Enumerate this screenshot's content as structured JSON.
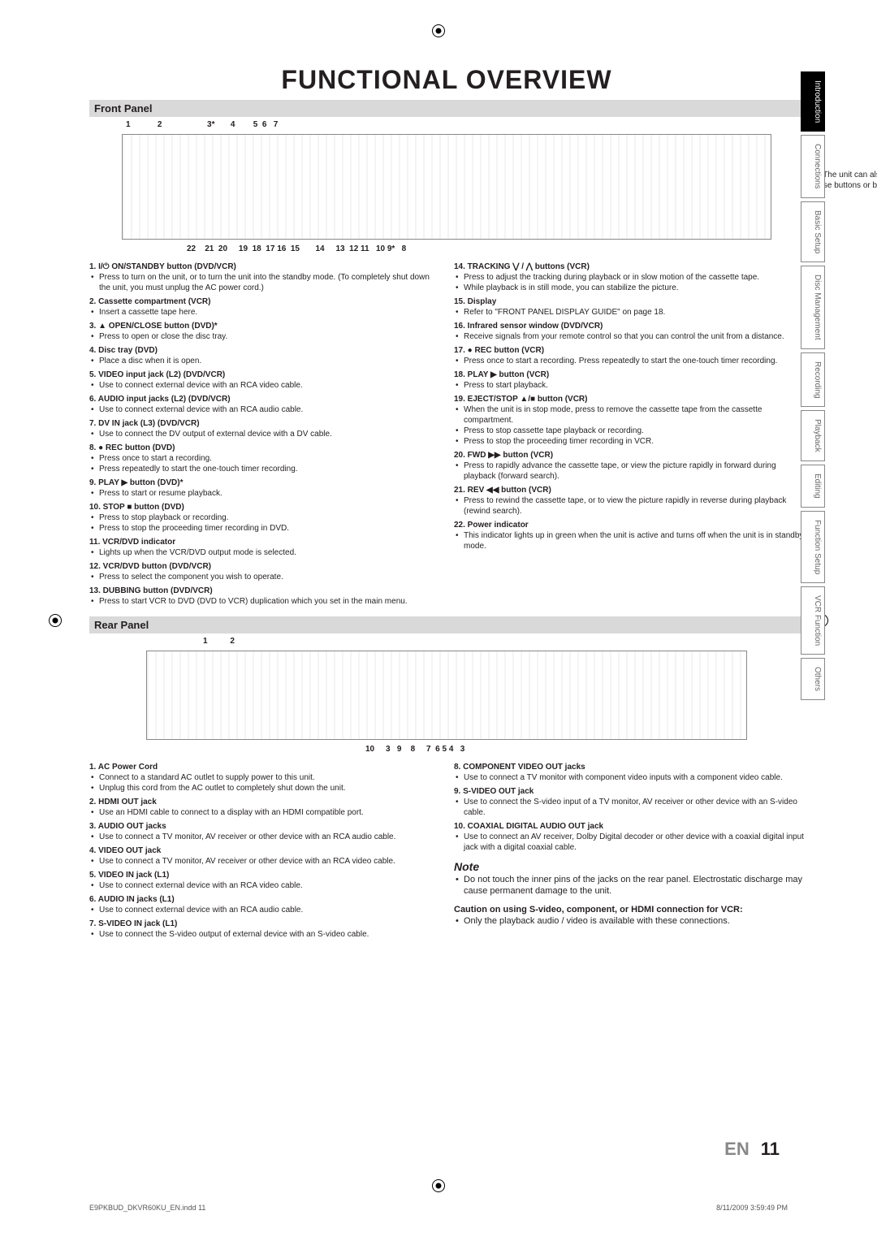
{
  "title": "FUNCTIONAL OVERVIEW",
  "sections": {
    "front": "Front Panel",
    "rear": "Rear Panel"
  },
  "front_top_nums": "1            2                    3*       4        5  6   7",
  "front_bottom_nums": "22    21  20     19  18  17 16  15       14     13  12 11   10 9*   8",
  "side_note": "(*) The unit can also be turned on by pressing these buttons or by inserting a cassette tape.",
  "front_left": [
    {
      "h": "1. I/⏻ ON/STANDBY button (DVD/VCR)",
      "b": [
        "Press to turn on the unit, or to turn the unit into the standby mode. (To completely shut down the unit, you must unplug the AC power cord.)"
      ]
    },
    {
      "h": "2. Cassette compartment (VCR)",
      "b": [
        "Insert a cassette tape here."
      ]
    },
    {
      "h": "3. ▲ OPEN/CLOSE button (DVD)*",
      "b": [
        "Press to open or close the disc tray."
      ]
    },
    {
      "h": "4. Disc tray (DVD)",
      "b": [
        "Place a disc when it is open."
      ]
    },
    {
      "h": "5. VIDEO input jack (L2) (DVD/VCR)",
      "b": [
        "Use to connect external device with an RCA video cable."
      ]
    },
    {
      "h": "6. AUDIO input jacks (L2) (DVD/VCR)",
      "b": [
        "Use to connect external device with an RCA audio cable."
      ]
    },
    {
      "h": "7. DV IN jack (L3) (DVD/VCR)",
      "b": [
        "Use to connect the DV output of external device with a DV cable."
      ]
    },
    {
      "h": "8. ● REC button (DVD)",
      "b": [
        "Press once to start a recording.",
        "Press repeatedly to start the one-touch timer recording."
      ]
    },
    {
      "h": "9. PLAY ▶ button (DVD)*",
      "b": [
        "Press to start or resume playback."
      ]
    },
    {
      "h": "10. STOP ■ button (DVD)",
      "b": [
        "Press to stop playback or recording.",
        "Press to stop the proceeding timer recording in DVD."
      ]
    },
    {
      "h": "11. VCR/DVD indicator",
      "b": [
        "Lights up when the VCR/DVD output mode is selected."
      ]
    },
    {
      "h": "12. VCR/DVD button (DVD/VCR)",
      "b": [
        "Press to select the component you wish to operate."
      ]
    },
    {
      "h": "13. DUBBING button (DVD/VCR)",
      "b": [
        "Press to start VCR to DVD (DVD to VCR) duplication which you set in the main menu."
      ]
    }
  ],
  "front_right": [
    {
      "h": "14. TRACKING ⋁ / ⋀ buttons (VCR)",
      "b": [
        "Press to adjust the tracking during playback or in slow motion of the cassette tape.",
        "While playback is in still mode, you can stabilize the picture."
      ]
    },
    {
      "h": "15. Display",
      "b": [
        "Refer to \"FRONT PANEL DISPLAY GUIDE\" on page 18."
      ]
    },
    {
      "h": "16. Infrared sensor window (DVD/VCR)",
      "b": [
        "Receive signals from your remote control so that you can control the unit from a distance."
      ]
    },
    {
      "h": "17. ● REC button (VCR)",
      "b": [
        "Press once to start a recording. Press repeatedly to start the one-touch timer recording."
      ]
    },
    {
      "h": "18. PLAY ▶ button (VCR)",
      "b": [
        "Press to start playback."
      ]
    },
    {
      "h": "19. EJECT/STOP ▲/■ button (VCR)",
      "b": [
        "When the unit is in stop mode, press to remove the cassette tape from the cassette compartment.",
        "Press to stop cassette tape playback or recording.",
        "Press to stop the proceeding timer recording in VCR."
      ]
    },
    {
      "h": "20. FWD ▶▶ button (VCR)",
      "b": [
        "Press to rapidly advance the cassette tape, or view the picture rapidly in forward during playback (forward search)."
      ]
    },
    {
      "h": "21. REV ◀◀ button (VCR)",
      "b": [
        "Press to rewind the cassette tape, or to view the picture rapidly in reverse during playback (rewind search)."
      ]
    },
    {
      "h": "22. Power indicator",
      "b": [
        "This indicator lights up in green when the unit is active and turns off when the unit is in standby mode."
      ]
    }
  ],
  "rear_top_nums": "1          2",
  "rear_bottom_nums": "10     3   9    8     7  6 5 4   3",
  "rear_left": [
    {
      "h": "1. AC Power Cord",
      "b": [
        "Connect to a standard AC outlet to supply power to this unit.",
        "Unplug this cord from the AC outlet to completely shut down the unit."
      ]
    },
    {
      "h": "2. HDMI OUT jack",
      "b": [
        "Use an HDMI cable to connect to a display with an HDMI compatible port."
      ]
    },
    {
      "h": "3. AUDIO OUT jacks",
      "b": [
        "Use to connect a TV monitor, AV receiver or other device with an RCA audio cable."
      ]
    },
    {
      "h": "4. VIDEO OUT jack",
      "b": [
        "Use to connect a TV monitor, AV receiver or other device with an RCA video cable."
      ]
    },
    {
      "h": "5. VIDEO IN jack (L1)",
      "b": [
        "Use to connect external device with an RCA video cable."
      ]
    },
    {
      "h": "6. AUDIO IN jacks (L1)",
      "b": [
        "Use to connect external device with an RCA audio cable."
      ]
    },
    {
      "h": "7. S-VIDEO IN jack (L1)",
      "b": [
        "Use to connect the S-video output of external device with an S-video cable."
      ]
    }
  ],
  "rear_right": [
    {
      "h": "8. COMPONENT VIDEO OUT jacks",
      "b": [
        "Use to connect a TV monitor with component video inputs with a component video cable."
      ]
    },
    {
      "h": "9. S-VIDEO OUT jack",
      "b": [
        "Use to connect the S-video input of a TV monitor, AV receiver or other device with an S-video cable."
      ]
    },
    {
      "h": "10. COAXIAL DIGITAL AUDIO OUT jack",
      "b": [
        "Use to connect an AV receiver, Dolby Digital decoder or other device with a coaxial digital input jack with a digital coaxial cable."
      ]
    }
  ],
  "note": {
    "title": "Note",
    "bullets": [
      "Do not touch the inner pins of the jacks on the rear panel. Electrostatic discharge may cause permanent damage to the unit."
    ]
  },
  "caution": {
    "title": "Caution on using S-video, component, or HDMI connection for VCR:",
    "bullets": [
      "Only the playback audio / video is available with these connections."
    ]
  },
  "page": {
    "lang": "EN",
    "num": "11"
  },
  "footer": {
    "left": "E9PKBUD_DKVR60KU_EN.indd   11",
    "right": "8/11/2009   3:59:49 PM"
  },
  "tabs": [
    "Introduction",
    "Connections",
    "Basic Setup",
    "Disc Management",
    "Recording",
    "Playback",
    "Editing",
    "Function Setup",
    "VCR Function",
    "Others"
  ],
  "active_tab": 0
}
